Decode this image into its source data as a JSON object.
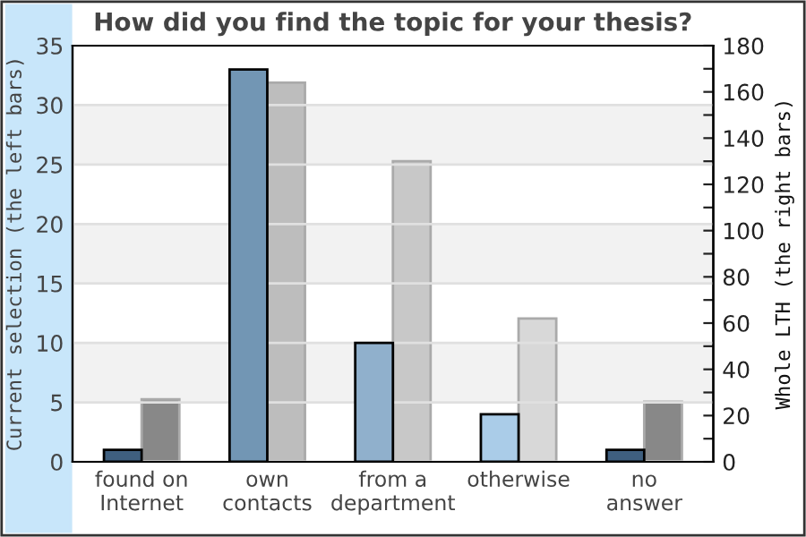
{
  "chart_data": {
    "type": "bar",
    "title": "How did you find the topic for your thesis?",
    "ylabel": "Current selection (the left bars)",
    "y2label": "Whole LTH (the right bars)",
    "categories": [
      "found on\nInternet",
      "own\ncontacts",
      "from a\ndepartment",
      "otherwise",
      "no\nanswer"
    ],
    "series": [
      {
        "colors": [
          "#3f5f7f",
          "#7296b4",
          "#90b0cc",
          "#aacce8",
          "#3f5f7f"
        ],
        "values": [
          1,
          33,
          10,
          4,
          1
        ]
      },
      {
        "axis": "y2",
        "colors": [
          "#888888",
          "#bdbdbd",
          "#c8c8c8",
          "#d8d8d8",
          "#888888"
        ],
        "values": [
          27,
          164,
          130,
          62,
          26
        ]
      }
    ],
    "ylim": [
      0,
      35
    ],
    "yticks": [
      0,
      5,
      10,
      15,
      20,
      25,
      30,
      35
    ],
    "y2lim": [
      0,
      180
    ],
    "y2ticks": [
      0,
      {
        "value": 10,
        "label": null
      },
      20,
      {
        "value": 30,
        "label": null
      },
      40,
      {
        "value": 50,
        "label": null
      },
      60,
      {
        "value": 70,
        "label": null
      },
      80,
      {
        "value": 90,
        "label": null
      },
      100,
      {
        "value": 110,
        "label": null
      },
      120,
      {
        "value": 130,
        "label": null
      },
      140,
      {
        "value": 150,
        "label": null
      },
      160,
      {
        "value": 170,
        "label": null
      },
      180
    ],
    "grid": "y",
    "legend": false
  }
}
